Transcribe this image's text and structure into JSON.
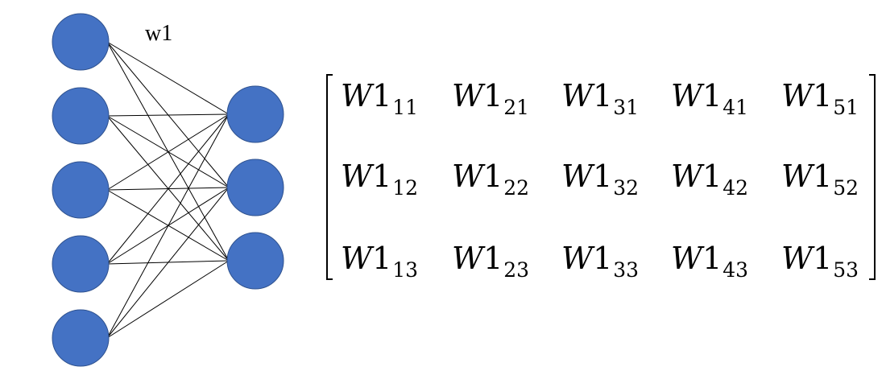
{
  "weight_label": "w1",
  "colors": {
    "node_fill": "#4472C4",
    "node_stroke": "#2F528F",
    "edge": "#000000"
  },
  "network": {
    "input_nodes": 5,
    "output_nodes": 3
  },
  "matrix": {
    "rows": [
      [
        {
          "base": "W",
          "num": "1",
          "sub": "11"
        },
        {
          "base": "W",
          "num": "1",
          "sub": "21"
        },
        {
          "base": "W",
          "num": "1",
          "sub": "31"
        },
        {
          "base": "W",
          "num": "1",
          "sub": "41"
        },
        {
          "base": "W",
          "num": "1",
          "sub": "51"
        }
      ],
      [
        {
          "base": "W",
          "num": "1",
          "sub": "12"
        },
        {
          "base": "W",
          "num": "1",
          "sub": "22"
        },
        {
          "base": "W",
          "num": "1",
          "sub": "32"
        },
        {
          "base": "W",
          "num": "1",
          "sub": "42"
        },
        {
          "base": "W",
          "num": "1",
          "sub": "52"
        }
      ],
      [
        {
          "base": "W",
          "num": "1",
          "sub": "13"
        },
        {
          "base": "W",
          "num": "1",
          "sub": "23"
        },
        {
          "base": "W",
          "num": "1",
          "sub": "33"
        },
        {
          "base": "W",
          "num": "1",
          "sub": "43"
        },
        {
          "base": "W",
          "num": "1",
          "sub": "53"
        }
      ]
    ]
  }
}
